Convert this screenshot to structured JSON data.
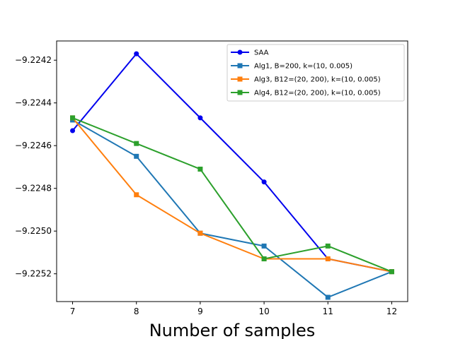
{
  "chart_data": {
    "type": "line",
    "title": "",
    "xlabel": "Number of samples",
    "ylabel": "",
    "x": [
      7,
      8,
      9,
      10,
      11,
      12
    ],
    "xlim": [
      6.75,
      12.25
    ],
    "ylim": [
      -9.22533,
      -9.22411
    ],
    "x_ticks": [
      "7",
      "8",
      "9",
      "10",
      "11",
      "12"
    ],
    "y_ticks": [
      {
        "value": -9.2242,
        "label": "−9.2242"
      },
      {
        "value": -9.2244,
        "label": "−9.2244"
      },
      {
        "value": -9.2246,
        "label": "−9.2246"
      },
      {
        "value": -9.2248,
        "label": "−9.2248"
      },
      {
        "value": -9.225,
        "label": "−9.2250"
      },
      {
        "value": -9.2252,
        "label": "−9.2252"
      }
    ],
    "grid": false,
    "legend_position": "top-right",
    "series": [
      {
        "name": "SAA",
        "color": "#0000ee",
        "marker": "circle",
        "values": [
          -9.22453,
          -9.22417,
          -9.22447,
          -9.22477,
          -9.22513,
          -9.22519
        ]
      },
      {
        "name": "Alg1, B=200, k=(10, 0.005)",
        "color": "#1f77b4",
        "marker": "square",
        "values": [
          -9.22448,
          -9.22465,
          -9.22501,
          -9.22507,
          -9.22531,
          -9.22519
        ]
      },
      {
        "name": "Alg3, B12=(20, 200), k=(10, 0.005)",
        "color": "#ff7f0e",
        "marker": "square",
        "values": [
          -9.22447,
          -9.22483,
          -9.22501,
          -9.22513,
          -9.22513,
          -9.22519
        ]
      },
      {
        "name": "Alg4, B12=(20, 200), k=(10, 0.005)",
        "color": "#2ca02c",
        "marker": "square",
        "values": [
          -9.22447,
          -9.22459,
          -9.22471,
          -9.22513,
          -9.22507,
          -9.22519
        ]
      }
    ]
  }
}
